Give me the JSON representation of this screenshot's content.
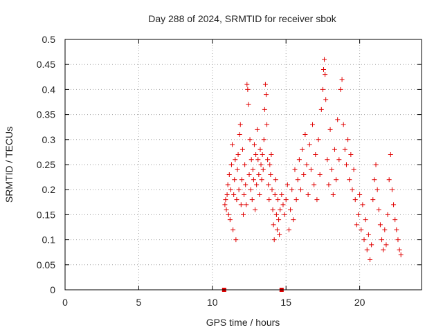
{
  "chart_data": {
    "type": "scatter",
    "title": "Day 288 of 2024, SRMTID for receiver sbok",
    "xlabel": "GPS time / hours",
    "ylabel": "SRMTID / TECUs",
    "xlim": [
      0,
      24.2
    ],
    "ylim": [
      0,
      0.5
    ],
    "x_ticks": [
      {
        "value": 0,
        "label": "0"
      },
      {
        "value": 5,
        "label": "5"
      },
      {
        "value": 10,
        "label": "10"
      },
      {
        "value": 15,
        "label": "15"
      },
      {
        "value": 20,
        "label": "20"
      }
    ],
    "y_ticks": [
      {
        "value": 0,
        "label": "0"
      },
      {
        "value": 0.05,
        "label": "0.05"
      },
      {
        "value": 0.1,
        "label": "0.1"
      },
      {
        "value": 0.15,
        "label": "0.15"
      },
      {
        "value": 0.2,
        "label": "0.2"
      },
      {
        "value": 0.25,
        "label": "0.25"
      },
      {
        "value": 0.3,
        "label": "0.3"
      },
      {
        "value": 0.35,
        "label": "0.35"
      },
      {
        "value": 0.4,
        "label": "0.4"
      },
      {
        "value": 0.45,
        "label": "0.45"
      },
      {
        "value": 0.5,
        "label": "0.5"
      }
    ],
    "grid": true,
    "marker": "+",
    "marker_color": "#e00000",
    "zero_markers": [
      10.8,
      14.7
    ],
    "series": [
      {
        "name": "SRMTID",
        "points": [
          [
            10.85,
            0.17
          ],
          [
            10.9,
            0.18
          ],
          [
            10.95,
            0.16
          ],
          [
            11.0,
            0.19
          ],
          [
            11.05,
            0.21
          ],
          [
            11.1,
            0.15
          ],
          [
            11.15,
            0.23
          ],
          [
            11.2,
            0.14
          ],
          [
            11.25,
            0.2
          ],
          [
            11.3,
            0.25
          ],
          [
            11.35,
            0.29
          ],
          [
            11.4,
            0.12
          ],
          [
            11.45,
            0.19
          ],
          [
            11.5,
            0.22
          ],
          [
            11.55,
            0.26
          ],
          [
            11.6,
            0.1
          ],
          [
            11.65,
            0.18
          ],
          [
            11.7,
            0.24
          ],
          [
            11.75,
            0.27
          ],
          [
            11.8,
            0.2
          ],
          [
            11.85,
            0.31
          ],
          [
            11.9,
            0.33
          ],
          [
            11.95,
            0.17
          ],
          [
            12.0,
            0.22
          ],
          [
            12.05,
            0.28
          ],
          [
            12.1,
            0.15
          ],
          [
            12.15,
            0.19
          ],
          [
            12.2,
            0.25
          ],
          [
            12.25,
            0.21
          ],
          [
            12.3,
            0.17
          ],
          [
            12.35,
            0.41
          ],
          [
            12.4,
            0.4
          ],
          [
            12.45,
            0.37
          ],
          [
            12.5,
            0.23
          ],
          [
            12.55,
            0.3
          ],
          [
            12.6,
            0.2
          ],
          [
            12.65,
            0.26
          ],
          [
            12.7,
            0.18
          ],
          [
            12.75,
            0.24
          ],
          [
            12.8,
            0.22
          ],
          [
            12.85,
            0.29
          ],
          [
            12.9,
            0.16
          ],
          [
            12.95,
            0.27
          ],
          [
            13.0,
            0.21
          ],
          [
            13.05,
            0.32
          ],
          [
            13.1,
            0.26
          ],
          [
            13.15,
            0.23
          ],
          [
            13.2,
            0.19
          ],
          [
            13.25,
            0.28
          ],
          [
            13.3,
            0.25
          ],
          [
            13.35,
            0.22
          ],
          [
            13.4,
            0.27
          ],
          [
            13.45,
            0.24
          ],
          [
            13.5,
            0.3
          ],
          [
            13.55,
            0.36
          ],
          [
            13.6,
            0.41
          ],
          [
            13.65,
            0.39
          ],
          [
            13.7,
            0.33
          ],
          [
            13.75,
            0.26
          ],
          [
            13.8,
            0.21
          ],
          [
            13.85,
            0.18
          ],
          [
            13.9,
            0.25
          ],
          [
            13.95,
            0.23
          ],
          [
            14.0,
            0.27
          ],
          [
            14.05,
            0.2
          ],
          [
            14.1,
            0.16
          ],
          [
            14.15,
            0.13
          ],
          [
            14.2,
            0.1
          ],
          [
            14.25,
            0.19
          ],
          [
            14.3,
            0.22
          ],
          [
            14.35,
            0.15
          ],
          [
            14.4,
            0.12
          ],
          [
            14.45,
            0.18
          ],
          [
            14.5,
            0.14
          ],
          [
            14.55,
            0.11
          ],
          [
            14.6,
            0.16
          ],
          [
            14.7,
            0.19
          ],
          [
            14.8,
            0.17
          ],
          [
            14.9,
            0.15
          ],
          [
            15.0,
            0.18
          ],
          [
            15.1,
            0.21
          ],
          [
            15.2,
            0.12
          ],
          [
            15.3,
            0.16
          ],
          [
            15.4,
            0.2
          ],
          [
            15.5,
            0.14
          ],
          [
            15.6,
            0.24
          ],
          [
            15.7,
            0.18
          ],
          [
            15.8,
            0.22
          ],
          [
            15.9,
            0.26
          ],
          [
            16.0,
            0.2
          ],
          [
            16.1,
            0.28
          ],
          [
            16.2,
            0.23
          ],
          [
            16.3,
            0.31
          ],
          [
            16.4,
            0.25
          ],
          [
            16.5,
            0.19
          ],
          [
            16.6,
            0.29
          ],
          [
            16.7,
            0.24
          ],
          [
            16.8,
            0.33
          ],
          [
            16.9,
            0.21
          ],
          [
            17.0,
            0.27
          ],
          [
            17.1,
            0.18
          ],
          [
            17.2,
            0.3
          ],
          [
            17.3,
            0.23
          ],
          [
            17.4,
            0.36
          ],
          [
            17.5,
            0.4
          ],
          [
            17.55,
            0.44
          ],
          [
            17.6,
            0.46
          ],
          [
            17.65,
            0.43
          ],
          [
            17.7,
            0.38
          ],
          [
            17.8,
            0.26
          ],
          [
            17.9,
            0.21
          ],
          [
            18.0,
            0.32
          ],
          [
            18.1,
            0.24
          ],
          [
            18.2,
            0.19
          ],
          [
            18.3,
            0.28
          ],
          [
            18.4,
            0.22
          ],
          [
            18.5,
            0.34
          ],
          [
            18.6,
            0.26
          ],
          [
            18.7,
            0.4
          ],
          [
            18.8,
            0.42
          ],
          [
            18.9,
            0.33
          ],
          [
            19.0,
            0.28
          ],
          [
            19.1,
            0.25
          ],
          [
            19.2,
            0.3
          ],
          [
            19.3,
            0.22
          ],
          [
            19.4,
            0.27
          ],
          [
            19.5,
            0.2
          ],
          [
            19.6,
            0.24
          ],
          [
            19.7,
            0.18
          ],
          [
            19.8,
            0.13
          ],
          [
            19.9,
            0.15
          ],
          [
            20.0,
            0.19
          ],
          [
            20.1,
            0.12
          ],
          [
            20.2,
            0.17
          ],
          [
            20.3,
            0.1
          ],
          [
            20.4,
            0.14
          ],
          [
            20.5,
            0.08
          ],
          [
            20.6,
            0.11
          ],
          [
            20.7,
            0.06
          ],
          [
            20.8,
            0.09
          ],
          [
            20.9,
            0.18
          ],
          [
            21.0,
            0.22
          ],
          [
            21.1,
            0.25
          ],
          [
            21.2,
            0.2
          ],
          [
            21.3,
            0.16
          ],
          [
            21.4,
            0.13
          ],
          [
            21.5,
            0.1
          ],
          [
            21.6,
            0.08
          ],
          [
            21.7,
            0.12
          ],
          [
            21.8,
            0.09
          ],
          [
            21.9,
            0.15
          ],
          [
            22.0,
            0.22
          ],
          [
            22.1,
            0.27
          ],
          [
            22.2,
            0.2
          ],
          [
            22.3,
            0.17
          ],
          [
            22.4,
            0.14
          ],
          [
            22.5,
            0.12
          ],
          [
            22.6,
            0.1
          ],
          [
            22.7,
            0.08
          ],
          [
            22.8,
            0.07
          ]
        ]
      }
    ]
  }
}
